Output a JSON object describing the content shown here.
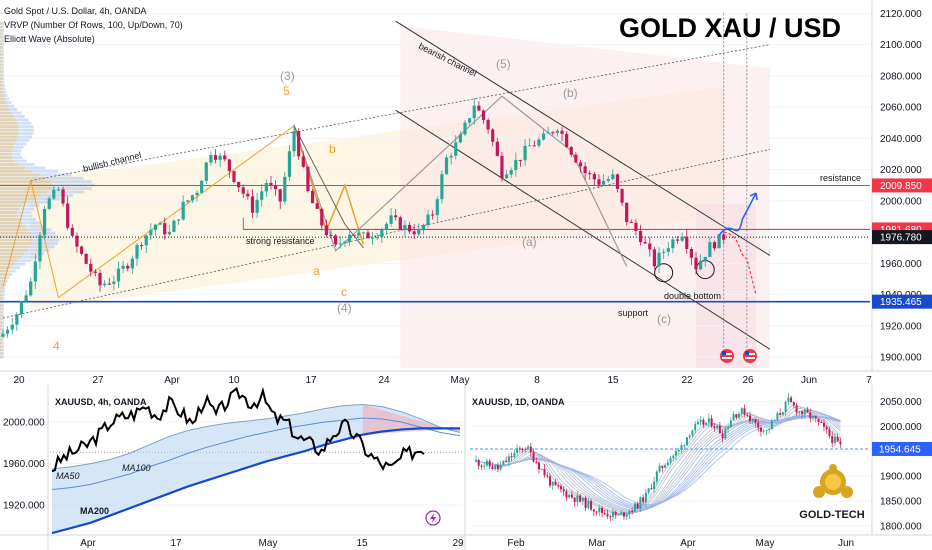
{
  "colors": {
    "bull": "#26a69a",
    "bear": "#c2185b",
    "resistance": "#f23645",
    "support": "#1848cc",
    "current": "#131722",
    "wave_orange": "#f0a030",
    "wave_gray": "#9a9a9a",
    "forecast_up": "#2962ff",
    "forecast_down": "#f23645"
  },
  "headline": {
    "title": "GOLD   XAU / USD"
  },
  "info_lines": [
    "Gold Spot / U.S. Dollar, 4h, OANDA",
    "VRVP (Number Of Rows, 100, Up/Down, 70)",
    "Elliott Wave (Absolute)"
  ],
  "chart_data": [
    {
      "type": "candlestick",
      "id": "main",
      "symbol": "Gold Spot / U.S. Dollar, 4h, OANDA",
      "ylim": [
        1893,
        2126
      ],
      "y_ticks": [
        1900,
        1920,
        1940,
        1960,
        1980,
        2000,
        2020,
        2040,
        2060,
        2080,
        2100,
        2120
      ],
      "y_tick_labels": [
        "1900.000",
        "1920.000",
        "1940.000",
        "1960.000",
        "1980.000",
        "2000.000",
        "2020.000",
        "2040.000",
        "2060.000",
        "2080.000",
        "2100.000",
        "2120.000"
      ],
      "x_tick_labels": [
        "20",
        "27",
        "Apr",
        "10",
        "17",
        "24",
        "May",
        "8",
        "15",
        "22",
        "26",
        "Jun",
        "7"
      ],
      "price_levels": [
        {
          "name": "resistance",
          "value": 2009.85,
          "label": "2009.850",
          "text": "resistance"
        },
        {
          "name": "level",
          "value": 1981.68,
          "label": "1981.680",
          "text": ""
        },
        {
          "name": "current",
          "value": 1976.78,
          "label": "1976.780",
          "text": ""
        },
        {
          "name": "support",
          "value": 1935.465,
          "label": "1935.465",
          "text": "support"
        }
      ],
      "annotations": [
        "bullish channel",
        "bearish channel",
        "strong resistance",
        "double bottom"
      ],
      "wave_labels": [
        "(3)",
        "5",
        "b",
        "a",
        "c",
        "(4)",
        "4",
        "(5)",
        "(b)",
        "(a)",
        "(c)"
      ],
      "close_path": [
        [
          0,
          1915
        ],
        [
          3,
          1928
        ],
        [
          6,
          1948
        ],
        [
          9,
          1997
        ],
        [
          12,
          2007
        ],
        [
          15,
          1975
        ],
        [
          18,
          1960
        ],
        [
          21,
          1946
        ],
        [
          24,
          1950
        ],
        [
          27,
          1960
        ],
        [
          30,
          1975
        ],
        [
          33,
          1985
        ],
        [
          36,
          1979
        ],
        [
          39,
          1997
        ],
        [
          42,
          2007
        ],
        [
          45,
          2032
        ],
        [
          48,
          2025
        ],
        [
          51,
          2010
        ],
        [
          54,
          1995
        ],
        [
          57,
          2012
        ],
        [
          60,
          2000
        ],
        [
          63,
          2045
        ],
        [
          66,
          2005
        ],
        [
          69,
          1985
        ],
        [
          72,
          1970
        ],
        [
          75,
          1980
        ],
        [
          78,
          1977
        ],
        [
          81,
          1980
        ],
        [
          84,
          1988
        ],
        [
          87,
          1983
        ],
        [
          90,
          1980
        ],
        [
          93,
          1992
        ],
        [
          96,
          2027
        ],
        [
          99,
          2040
        ],
        [
          102,
          2062
        ],
        [
          105,
          2047
        ],
        [
          108,
          2018
        ],
        [
          111,
          2025
        ],
        [
          114,
          2035
        ],
        [
          117,
          2040
        ],
        [
          120,
          2048
        ],
        [
          123,
          2032
        ],
        [
          126,
          2018
        ],
        [
          129,
          2012
        ],
        [
          132,
          2015
        ],
        [
          135,
          1988
        ],
        [
          138,
          1977
        ],
        [
          141,
          1960
        ],
        [
          144,
          1972
        ],
        [
          147,
          1980
        ],
        [
          150,
          1958
        ],
        [
          153,
          1971
        ],
        [
          156,
          1977
        ]
      ]
    },
    {
      "type": "line",
      "id": "mini_4h",
      "symbol": "XAUUSD, 4h, OANDA",
      "ylim": [
        1895,
        2032
      ],
      "y_ticks": [
        1920,
        1960,
        2000
      ],
      "y_tick_labels": [
        "1920.000",
        "1960.000",
        "2000.000"
      ],
      "x_tick_labels": [
        "Apr",
        "17",
        "May",
        "15",
        "29"
      ],
      "series": [
        {
          "name": "MA50",
          "values": [
            1955,
            1957,
            1960,
            1964,
            1970,
            1978,
            1986,
            1992,
            1996,
            1999,
            2001,
            2003,
            2006,
            2009,
            2013,
            2016,
            2017,
            2015,
            2010,
            2003,
            1995,
            1990
          ]
        },
        {
          "name": "MA100",
          "values": [
            1935,
            1937,
            1940,
            1945,
            1950,
            1957,
            1963,
            1970,
            1976,
            1981,
            1986,
            1990,
            1994,
            1997,
            2000,
            2002,
            2004,
            2003,
            2000,
            1995,
            1990,
            1987
          ]
        },
        {
          "name": "MA200",
          "values": [
            1893,
            1898,
            1903,
            1910,
            1917,
            1924,
            1931,
            1938,
            1944,
            1950,
            1956,
            1962,
            1967,
            1972,
            1978,
            1983,
            1988,
            1991,
            1993,
            1994,
            1994,
            1994
          ]
        },
        {
          "name": "price",
          "values": [
            1955,
            1966,
            1972,
            1978,
            1988,
            2000,
            2005,
            2008,
            2016,
            2006,
            2018,
            2010,
            1998,
            2022,
            2007,
            2020,
            2028,
            2018,
            2024,
            2004,
            2000,
            1985,
            1980,
            1972,
            1989,
            1997,
            1985,
            1970,
            1960,
            1955,
            1968,
            1972
          ]
        }
      ]
    },
    {
      "type": "candlestick",
      "id": "mini_1d",
      "symbol": "XAUUSD, 1D, OANDA",
      "ylim": [
        1790,
        2075
      ],
      "y_ticks": [
        1800,
        1850,
        1900,
        1950,
        2000,
        2050
      ],
      "y_tick_labels": [
        "1800.000",
        "1850.000",
        "1900.000",
        "1950.000",
        "2000.000",
        "2050.000"
      ],
      "x_tick_labels": [
        "Feb",
        "Mar",
        "Apr",
        "May",
        "Jun"
      ],
      "price_levels": [
        {
          "name": "current",
          "value": 1954.645,
          "label": "1954.645"
        }
      ],
      "close_path": [
        [
          0,
          1930
        ],
        [
          8,
          1915
        ],
        [
          14,
          1945
        ],
        [
          18,
          1960
        ],
        [
          22,
          1930
        ],
        [
          28,
          1880
        ],
        [
          34,
          1862
        ],
        [
          40,
          1845
        ],
        [
          46,
          1828
        ],
        [
          52,
          1820
        ],
        [
          58,
          1838
        ],
        [
          62,
          1860
        ],
        [
          66,
          1905
        ],
        [
          70,
          1935
        ],
        [
          74,
          1950
        ],
        [
          78,
          1990
        ],
        [
          82,
          2005
        ],
        [
          86,
          2008
        ],
        [
          90,
          1985
        ],
        [
          94,
          2025
        ],
        [
          98,
          2030
        ],
        [
          102,
          2005
        ],
        [
          106,
          1990
        ],
        [
          110,
          2020
        ],
        [
          114,
          2050
        ],
        [
          118,
          2030
        ],
        [
          122,
          2020
        ],
        [
          126,
          2000
        ],
        [
          130,
          1975
        ],
        [
          133,
          1960
        ]
      ]
    }
  ],
  "logo": {
    "text": "GOLD-TECH"
  }
}
